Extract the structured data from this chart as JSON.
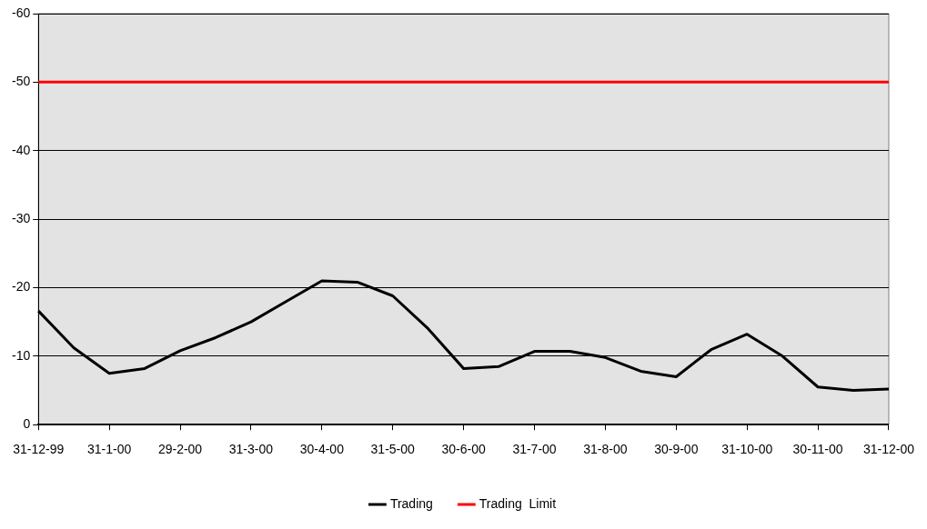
{
  "chart_data": {
    "type": "line",
    "categories": [
      "31-12-99",
      null,
      "31-1-00",
      null,
      "29-2-00",
      null,
      "31-3-00",
      null,
      "30-4-00",
      null,
      "31-5-00",
      null,
      "30-6-00",
      null,
      "31-7-00",
      null,
      "31-8-00",
      null,
      "30-9-00",
      null,
      "31-10-00",
      null,
      "30-11-00",
      null,
      "31-12-00"
    ],
    "series": [
      {
        "name": "Trading",
        "color": "#000000",
        "values": [
          -16.6,
          -11.2,
          -7.5,
          -8.2,
          -10.8,
          -12.7,
          -15,
          -18,
          -21,
          -20.8,
          -18.8,
          -14,
          -8.2,
          -8.5,
          -10.7,
          -10.7,
          -9.8,
          -7.8,
          -7,
          -11,
          -13.2,
          -10,
          -5.5,
          -5,
          -5.2
        ]
      },
      {
        "name": "Trading  Limit",
        "color": "#ff0000",
        "values": [
          -50,
          -50,
          -50,
          -50,
          -50,
          -50,
          -50,
          -50,
          -50,
          -50,
          -50,
          -50,
          -50,
          -50,
          -50,
          -50,
          -50,
          -50,
          -50,
          -50,
          -50,
          -50,
          -50,
          -50,
          -50
        ]
      }
    ],
    "ylim": [
      0,
      -60
    ],
    "yticks": [
      0,
      -10,
      -20,
      -30,
      -40,
      -50,
      -60
    ],
    "grid": "y",
    "legend": "bottom",
    "marker": "none",
    "line_style": "solid"
  }
}
